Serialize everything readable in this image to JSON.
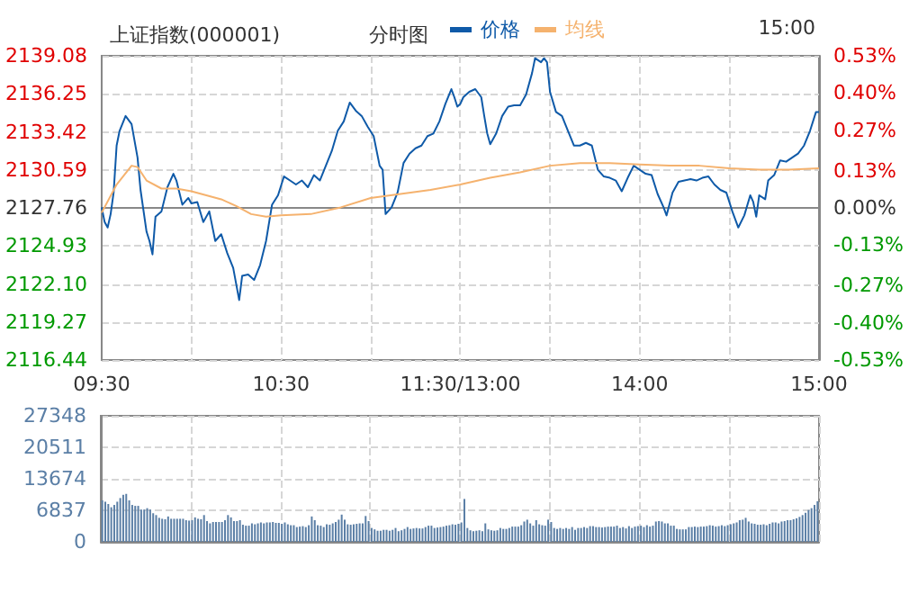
{
  "chart_data": [
    {
      "type": "line",
      "title": "上证指数(000001)",
      "subtitle": "分时图",
      "annotations": [
        "15:00"
      ],
      "legend": "top",
      "grid": true,
      "marker": "none",
      "categories": [
        "09:30",
        null,
        null,
        null,
        null,
        null,
        null,
        null,
        null,
        null,
        null,
        null,
        null,
        null,
        null,
        null,
        null,
        null,
        null,
        null,
        null,
        null,
        null,
        null,
        null,
        null,
        null,
        null,
        null,
        null,
        null,
        null,
        null,
        null,
        null,
        null,
        null,
        null,
        null,
        null,
        null,
        null,
        null,
        null,
        null,
        null,
        null,
        null,
        null,
        null,
        null,
        null,
        null,
        null,
        null,
        null,
        null,
        null,
        null,
        null,
        "10:30",
        null,
        null,
        null,
        null,
        null,
        null,
        null,
        null,
        null,
        null,
        null,
        null,
        null,
        null,
        null,
        null,
        null,
        null,
        null,
        null,
        null,
        null,
        null,
        null,
        null,
        null,
        null,
        null,
        null,
        null,
        null,
        null,
        null,
        null,
        null,
        null,
        null,
        null,
        null,
        null,
        null,
        null,
        null,
        null,
        null,
        null,
        null,
        null,
        null,
        null,
        null,
        null,
        null,
        null,
        null,
        null,
        null,
        null,
        null,
        "11:30/13:00",
        null,
        null,
        null,
        null,
        null,
        null,
        null,
        null,
        null,
        null,
        null,
        null,
        null,
        null,
        null,
        null,
        null,
        null,
        null,
        null,
        null,
        null,
        null,
        null,
        null,
        null,
        null,
        null,
        null,
        null,
        null,
        null,
        null,
        null,
        null,
        null,
        null,
        null,
        null,
        null,
        null,
        null,
        null,
        null,
        null,
        null,
        null,
        null,
        null,
        null,
        null,
        null,
        null,
        null,
        null,
        null,
        null,
        null,
        null,
        "14:00",
        null,
        null,
        null,
        null,
        null,
        null,
        null,
        null,
        null,
        null,
        null,
        null,
        null,
        null,
        null,
        null,
        null,
        null,
        null,
        null,
        null,
        null,
        null,
        null,
        null,
        null,
        null,
        null,
        null,
        null,
        null,
        null,
        null,
        null,
        null,
        null,
        null,
        null,
        null,
        null,
        null,
        null,
        null,
        null,
        null,
        null,
        null,
        null,
        null,
        null,
        null,
        null,
        null,
        null,
        null,
        null,
        null,
        null,
        null,
        "15:00"
      ],
      "ylim": [
        2116.44,
        2139.08
      ],
      "yticks": [
        2116.44,
        2119.27,
        {
          "value": 2122.1,
          "label": "2122.10"
        },
        2124.93,
        2127.76,
        2130.59,
        2133.42,
        2136.25,
        2139.08
      ],
      "y2lim": [
        -0.53,
        0.53
      ],
      "y2ticks": [
        {
          "value": -0.53,
          "label": "-0.53%"
        },
        {
          "value": -0.4,
          "label": "-0.40%"
        },
        {
          "value": -0.27,
          "label": "-0.27%"
        },
        {
          "value": -0.13,
          "label": "-0.13%"
        },
        {
          "value": 0,
          "label": "0.00%"
        },
        {
          "value": 0.13,
          "label": "0.13%"
        },
        {
          "value": 0.27,
          "label": "0.27%"
        },
        {
          "value": 0.4,
          "label": "0.40%"
        },
        {
          "value": 0.53,
          "label": "0.53%"
        }
      ],
      "series": [
        {
          "name": "价格",
          "color": "#0f5aa8",
          "values": [
            2127.8,
            2126.7,
            2126.3,
            2127.3,
            2128.9,
            2132.4,
            2133.5,
            null,
            2134.6,
            null,
            2134.0,
            null,
            2131.5,
            2129.1,
            null,
            2126.0,
            2125.3,
            2124.3,
            2127.1,
            null,
            2127.5,
            null,
            2129.3,
            null,
            2130.3,
            2129.8,
            null,
            2128.0,
            null,
            2128.5,
            2128.1,
            null,
            2128.2,
            null,
            2126.7,
            null,
            2127.5,
            null,
            2125.3,
            null,
            2125.8,
            null,
            2124.4,
            null,
            2123.3,
            null,
            2120.9,
            2122.7,
            null,
            2122.8,
            null,
            2122.4,
            null,
            2123.5,
            null,
            2125.3,
            null,
            2128.0,
            null,
            2128.7,
            null,
            2130.1,
            null,
            2129.8,
            null,
            2129.5,
            null,
            2129.8,
            null,
            2129.3,
            null,
            2130.2,
            null,
            2129.8,
            null,
            2130.9,
            null,
            2132.0,
            null,
            2133.5,
            null,
            2134.2,
            null,
            2135.6,
            null,
            2135.0,
            null,
            2134.6,
            null,
            2133.8,
            null,
            2133.1,
            null,
            2130.9,
            2130.6,
            2127.3,
            null,
            2127.8,
            null,
            2128.9,
            null,
            2131.1,
            null,
            2131.8,
            null,
            2132.2,
            null,
            2132.4,
            null,
            2133.1,
            null,
            2133.3,
            null,
            2134.2,
            null,
            2135.5,
            null,
            2136.6,
            2136.0,
            2135.3,
            2135.5,
            2136.0,
            null,
            2136.4,
            null,
            2136.6,
            null,
            2136.0,
            2134.6,
            2133.3,
            2132.5,
            null,
            2133.3,
            null,
            2134.6,
            null,
            2135.3,
            null,
            2135.4,
            null,
            2135.4,
            null,
            2136.2,
            null,
            2137.8,
            2138.9,
            null,
            2138.6,
            2138.9,
            2138.6,
            2136.4,
            null,
            2134.9,
            null,
            2134.6,
            null,
            2133.5,
            null,
            2132.4,
            null,
            2132.4,
            null,
            2132.6,
            null,
            2132.4,
            null,
            2130.6,
            null,
            2130.1,
            null,
            2130.0,
            null,
            2129.8,
            null,
            2129.0,
            null,
            2130.0,
            null,
            2130.9,
            null,
            2130.6,
            null,
            2130.3,
            null,
            2130.2,
            null,
            2128.8,
            null,
            2127.8,
            2127.2,
            null,
            2128.9,
            null,
            2129.7,
            null,
            2129.8,
            null,
            2129.9,
            null,
            2129.8,
            null,
            2130.0,
            null,
            2130.1,
            null,
            2129.5,
            null,
            2129.1,
            null,
            2128.9,
            null,
            2127.5,
            2126.9,
            2126.3,
            null,
            2127.2,
            null,
            2128.7,
            2128.2,
            2127.1,
            2128.7,
            null,
            2128.4,
            2129.8,
            null,
            2130.2,
            null,
            2131.3,
            null,
            2131.2,
            null,
            2131.5,
            null,
            2131.8,
            null,
            2132.4,
            null,
            2133.5,
            null,
            2134.9,
            2134.9
          ]
        },
        {
          "name": "均线",
          "color": "#f5b26e",
          "values": [
            2127.4,
            null,
            null,
            null,
            null,
            2129.5,
            null,
            null,
            null,
            null,
            2130.9,
            null,
            2130.8,
            null,
            null,
            2129.8,
            null,
            null,
            null,
            null,
            2129.2,
            null,
            null,
            null,
            null,
            2129.2,
            null,
            null,
            null,
            null,
            2129.0,
            null,
            null,
            null,
            null,
            2128.7,
            null,
            null,
            null,
            null,
            2128.4,
            null,
            null,
            null,
            null,
            2127.9,
            null,
            null,
            null,
            null,
            2127.3,
            null,
            null,
            null,
            null,
            2127.1,
            null,
            null,
            null,
            null,
            2127.2,
            null,
            null,
            null,
            null,
            null,
            null,
            null,
            null,
            null,
            2127.3,
            null,
            null,
            null,
            null,
            null,
            null,
            null,
            null,
            null,
            2127.8,
            null,
            null,
            null,
            null,
            null,
            null,
            null,
            null,
            null,
            2128.5,
            null,
            null,
            null,
            null,
            null,
            null,
            null,
            null,
            null,
            2128.8,
            null,
            null,
            null,
            null,
            null,
            null,
            null,
            null,
            null,
            2129.1,
            null,
            null,
            null,
            null,
            null,
            null,
            null,
            null,
            null,
            2129.5,
            null,
            null,
            null,
            null,
            null,
            null,
            null,
            null,
            null,
            2130.0,
            null,
            null,
            null,
            null,
            null,
            null,
            null,
            null,
            null,
            2130.4,
            null,
            null,
            null,
            null,
            null,
            null,
            null,
            null,
            null,
            2130.9,
            null,
            null,
            null,
            null,
            null,
            null,
            null,
            null,
            null,
            2131.1,
            null,
            null,
            null,
            null,
            null,
            null,
            null,
            null,
            null,
            2131.1,
            null,
            null,
            null,
            null,
            null,
            null,
            null,
            null,
            null,
            2131.0,
            null,
            null,
            null,
            null,
            null,
            null,
            null,
            null,
            null,
            2130.9,
            null,
            null,
            null,
            null,
            null,
            null,
            null,
            null,
            null,
            2130.9,
            null,
            null,
            null,
            null,
            null,
            null,
            null,
            null,
            null,
            2130.7,
            null,
            null,
            null,
            null,
            null,
            null,
            null,
            null,
            null,
            2130.6,
            null,
            null,
            null,
            null,
            null,
            null,
            null,
            null,
            null,
            2130.6,
            null,
            null,
            null,
            null,
            null,
            null,
            null,
            null,
            null,
            2130.7
          ]
        }
      ]
    },
    {
      "type": "bar",
      "grid": true,
      "tick_labels": "y",
      "color": "#5b7fa6",
      "ylim": [
        0,
        27348
      ],
      "yticks": [
        0,
        6837,
        13674,
        20511,
        27348
      ],
      "categories": [
        null,
        null,
        null,
        null,
        null,
        null,
        null,
        null,
        null,
        null,
        null,
        null,
        null,
        null,
        null,
        null,
        null,
        null,
        null,
        null,
        null,
        null,
        null,
        null,
        null,
        null,
        null,
        null,
        null,
        null,
        null,
        null,
        null,
        null,
        null,
        null,
        null,
        null,
        null,
        null,
        null,
        null,
        null,
        null,
        null,
        null,
        null,
        null,
        null,
        null,
        null,
        null,
        null,
        null,
        null,
        null,
        null,
        null,
        null,
        null,
        null,
        null,
        null,
        null,
        null,
        null,
        null,
        null,
        null,
        null,
        null,
        null,
        null,
        null,
        null,
        null,
        null,
        null,
        null,
        null,
        null,
        null,
        null,
        null,
        null,
        null,
        null,
        null,
        null,
        null,
        null,
        null,
        null,
        null,
        null,
        null,
        null,
        null,
        null,
        null,
        null,
        null,
        null,
        null,
        null,
        null,
        null,
        null,
        null,
        null,
        null,
        null,
        null,
        null,
        null,
        null,
        null,
        null,
        null,
        null,
        null,
        null,
        null,
        null,
        null,
        null,
        null,
        null,
        null,
        null,
        null,
        null,
        null,
        null,
        null,
        null,
        null,
        null,
        null,
        null,
        null,
        null,
        null,
        null,
        null,
        null,
        null,
        null,
        null,
        null,
        null,
        null,
        null,
        null,
        null,
        null,
        null,
        null,
        null,
        null,
        null,
        null,
        null,
        null,
        null,
        null,
        null,
        null,
        null,
        null,
        null,
        null,
        null,
        null,
        null,
        null,
        null,
        null,
        null,
        null,
        null,
        null,
        null,
        null,
        null,
        null,
        null,
        null,
        null,
        null,
        null,
        null,
        null,
        null,
        null,
        null,
        null,
        null,
        null,
        null,
        null,
        null,
        null,
        null,
        null,
        null,
        null,
        null,
        null,
        null,
        null,
        null,
        null,
        null,
        null,
        null,
        null,
        null,
        null,
        null,
        null,
        null,
        null,
        null,
        null,
        null,
        null,
        null,
        null,
        null,
        null,
        null,
        null,
        null,
        null,
        null,
        null,
        null,
        null,
        null
      ],
      "values": [
        9000,
        8700,
        8200,
        7500,
        8000,
        8700,
        9500,
        10200,
        10400,
        9000,
        8000,
        7800,
        7800,
        7000,
        7000,
        7300,
        7000,
        6200,
        5800,
        5200,
        5000,
        4900,
        5500,
        5000,
        5000,
        5000,
        5000,
        5000,
        4700,
        4600,
        4700,
        5300,
        5000,
        4900,
        5800,
        4500,
        4000,
        4300,
        4300,
        4300,
        4300,
        4700,
        5800,
        5300,
        4500,
        4500,
        4700,
        3700,
        3500,
        3500,
        4000,
        3800,
        4000,
        4200,
        4000,
        4200,
        4200,
        4300,
        4100,
        4100,
        3900,
        4200,
        3800,
        3600,
        3600,
        3200,
        3300,
        3400,
        3200,
        3600,
        5500,
        4700,
        3600,
        3500,
        3200,
        3800,
        3700,
        4000,
        4300,
        4800,
        5900,
        4800,
        3800,
        3700,
        3800,
        3900,
        4000,
        4000,
        5600,
        4500,
        3000,
        2700,
        2400,
        2400,
        2600,
        2600,
        2400,
        2600,
        3000,
        2300,
        2500,
        2800,
        3200,
        2800,
        2900,
        3000,
        2900,
        2900,
        3200,
        3500,
        3500,
        3000,
        3100,
        3200,
        3300,
        3500,
        3600,
        3800,
        3700,
        3900,
        4200,
        9300,
        3000,
        2500,
        2300,
        2400,
        2500,
        2300,
        4000,
        2700,
        2500,
        2400,
        2500,
        3000,
        2800,
        2800,
        3000,
        3300,
        3300,
        3300,
        3600,
        4400,
        4800,
        4000,
        3500,
        4700,
        3800,
        3600,
        3500,
        4800,
        4300,
        3000,
        2800,
        3000,
        2800,
        3000,
        2800,
        3200,
        2600,
        3000,
        3000,
        3200,
        3000,
        3400,
        3400,
        3200,
        3200,
        3100,
        3200,
        3300,
        3300,
        3300,
        3500,
        3000,
        3200,
        2900,
        3400,
        3000,
        3300,
        3400,
        3500,
        3200,
        3600,
        3300,
        3500,
        4400,
        4500,
        4400,
        4000,
        4000,
        3500,
        3500,
        2800,
        2700,
        2700,
        2700,
        3200,
        3200,
        3300,
        3200,
        3300,
        3300,
        3400,
        3600,
        3500,
        3300,
        3400,
        3600,
        3400,
        3600,
        3800,
        4000,
        4200,
        4700,
        4800,
        5200,
        4400,
        4000,
        3900,
        3700,
        3700,
        3800,
        3600,
        3900,
        4200,
        4200,
        4000,
        4400,
        4500,
        4700,
        4700,
        4900,
        5100,
        5400,
        5800,
        6300,
        6900,
        7300,
        8000,
        8800
      ]
    }
  ]
}
